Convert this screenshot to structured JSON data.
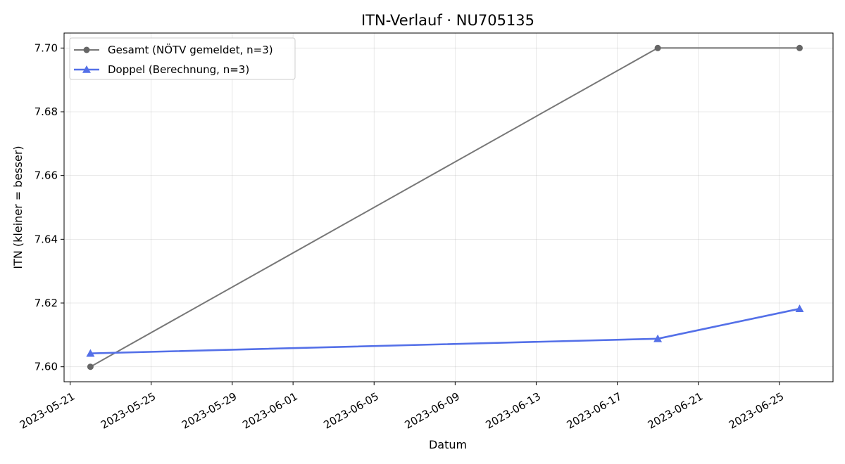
{
  "chart_data": {
    "type": "line",
    "title": "ITN-Verlauf · NU705135",
    "xlabel": "Datum",
    "ylabel": "ITN  (kleiner = besser)",
    "x_ticks": [
      "2023-05-21",
      "2023-05-25",
      "2023-05-29",
      "2023-06-01",
      "2023-06-05",
      "2023-06-09",
      "2023-06-13",
      "2023-06-17",
      "2023-06-21",
      "2023-06-25"
    ],
    "y_ticks": [
      "7.60",
      "7.62",
      "7.64",
      "7.66",
      "7.68",
      "7.70"
    ],
    "xlim": [
      "2023-05-21",
      "2023-06-27"
    ],
    "ylim": [
      7.5953,
      7.7047
    ],
    "grid": true,
    "legend_position": "top-left",
    "series": [
      {
        "name": "Gesamt (NÖTV gemeldet, n=3)",
        "color": "#777777",
        "marker": "circle",
        "x": [
          "2023-05-22",
          "2023-06-19",
          "2023-06-26"
        ],
        "y": [
          7.6,
          7.7,
          7.7
        ]
      },
      {
        "name": "Doppel (Berechnung, n=3)",
        "color": "#5470e8",
        "marker": "triangle",
        "x": [
          "2023-05-22",
          "2023-06-19",
          "2023-06-26"
        ],
        "y": [
          7.6042,
          7.6088,
          7.6182
        ]
      }
    ]
  }
}
